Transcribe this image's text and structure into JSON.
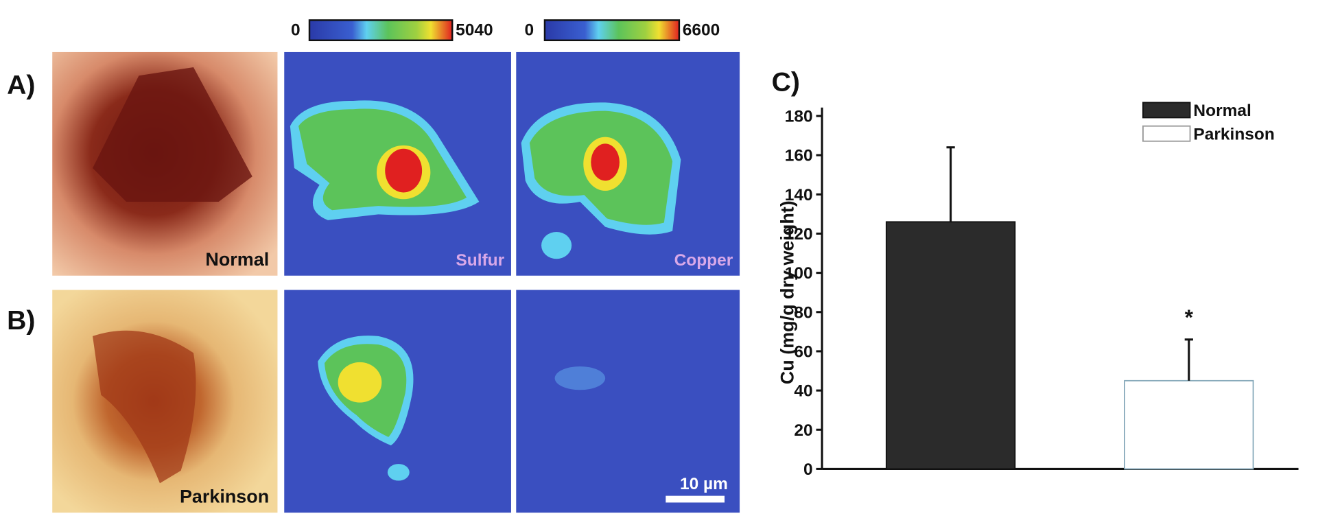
{
  "panels": [
    "A)",
    "B)",
    "C)"
  ],
  "image_labels": [
    "Normal",
    "Sulfur",
    "Copper",
    "Parkinson",
    "10 µm"
  ],
  "colorbars": [
    {
      "min": 0,
      "max": 5040
    },
    {
      "min": 0,
      "max": 6600
    }
  ],
  "chart_data": {
    "type": "bar",
    "ylabel": "Cu (mg/g dry weight)",
    "categories": [
      null
    ],
    "series": [
      {
        "name": "Normal",
        "color": "#2b2b2b",
        "values": [
          126
        ],
        "errors": [
          38
        ]
      },
      {
        "name": "Parkinson",
        "color": "#ffffff",
        "values": [
          45
        ],
        "errors": [
          21
        ]
      }
    ],
    "annotations": [
      "*"
    ],
    "ylim": [
      0,
      180
    ],
    "yticks": [
      0,
      20,
      40,
      60,
      80,
      100,
      120,
      140,
      160,
      180
    ],
    "legend": "upper right"
  }
}
